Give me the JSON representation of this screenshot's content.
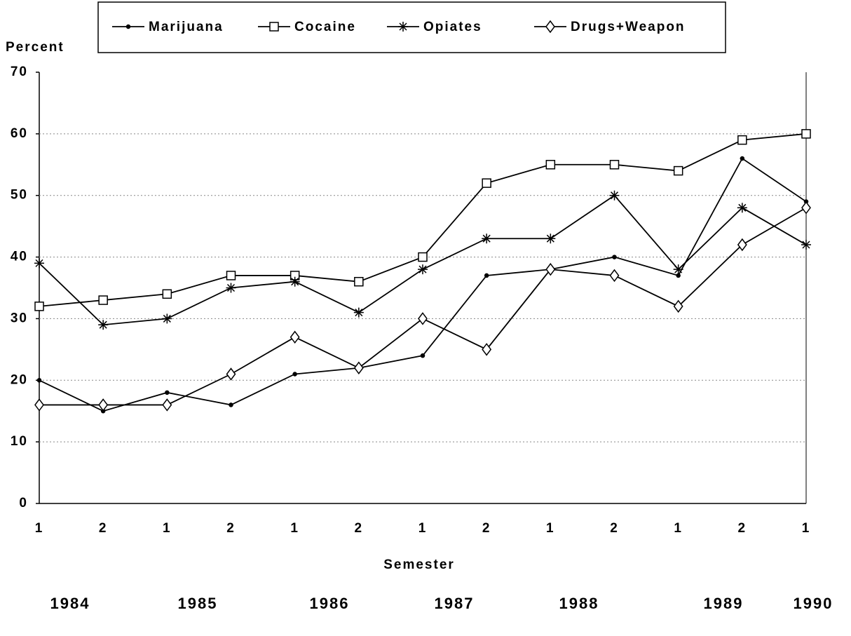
{
  "chart_data": {
    "type": "line",
    "x_label": "Semester",
    "y_label": "Percent",
    "categories": [
      "1",
      "2",
      "1",
      "2",
      "1",
      "2",
      "1",
      "2",
      "1",
      "2",
      "1",
      "2",
      "1"
    ],
    "year_labels": [
      "1984",
      "1985",
      "1986",
      "1987",
      "1988",
      "1989",
      "1990"
    ],
    "series": [
      {
        "name": "Marijuana",
        "color": "#000000",
        "marker": "dot",
        "values": [
          20,
          15,
          18,
          16,
          21,
          22,
          24,
          37,
          38,
          40,
          37,
          56,
          49
        ]
      },
      {
        "name": "Cocaine",
        "color": "#000000",
        "marker": "square",
        "values": [
          32,
          33,
          34,
          37,
          37,
          36,
          40,
          52,
          55,
          55,
          54,
          59,
          60
        ]
      },
      {
        "name": "Opiates",
        "color": "#000000",
        "marker": "asterisk",
        "values": [
          39,
          29,
          30,
          35,
          36,
          31,
          38,
          43,
          43,
          50,
          38,
          48,
          42
        ]
      },
      {
        "name": "Drugs+Weapon",
        "color": "#000000",
        "marker": "diamond",
        "values": [
          16,
          16,
          16,
          21,
          27,
          22,
          30,
          25,
          38,
          37,
          32,
          42,
          48
        ]
      }
    ],
    "ylim": [
      0,
      70
    ],
    "yticks": [
      0,
      10,
      20,
      30,
      40,
      50,
      60,
      70
    ],
    "grid": true,
    "legend": "top"
  }
}
